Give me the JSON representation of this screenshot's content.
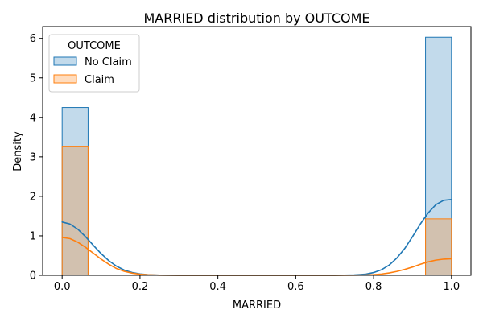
{
  "chart_data": {
    "type": "histogram",
    "title": "MARRIED distribution by OUTCOME",
    "xlabel": "MARRIED",
    "ylabel": "Density",
    "xlim": [
      -0.05,
      1.05
    ],
    "ylim": [
      0,
      6.3
    ],
    "xticks": [
      0.0,
      0.2,
      0.4,
      0.6,
      0.8,
      1.0
    ],
    "xtick_labels": [
      "0.0",
      "0.2",
      "0.4",
      "0.6",
      "0.8",
      "1.0"
    ],
    "yticks": [
      0,
      1,
      2,
      3,
      4,
      5,
      6
    ],
    "ytick_labels": [
      "0",
      "1",
      "2",
      "3",
      "4",
      "5",
      "6"
    ],
    "grid": false,
    "legend": {
      "title": "OUTCOME",
      "placement": "top-left",
      "entries": [
        "No Claim",
        "Claim"
      ]
    },
    "series": [
      {
        "name": "No Claim",
        "color": "#1f77b4",
        "bins": [
          {
            "x0": 0.0,
            "x1": 0.0667,
            "value": 4.25
          },
          {
            "x0": 0.9333,
            "x1": 1.0,
            "value": 6.03
          }
        ],
        "kde": {
          "x": [
            0.0,
            0.02,
            0.04,
            0.06,
            0.08,
            0.1,
            0.12,
            0.14,
            0.16,
            0.18,
            0.2,
            0.22,
            0.25,
            0.3,
            0.4,
            0.5,
            0.6,
            0.7,
            0.75,
            0.78,
            0.8,
            0.82,
            0.84,
            0.86,
            0.88,
            0.9,
            0.92,
            0.94,
            0.96,
            0.98,
            1.0
          ],
          "y": [
            1.35,
            1.3,
            1.17,
            0.98,
            0.76,
            0.55,
            0.37,
            0.23,
            0.13,
            0.07,
            0.035,
            0.017,
            0.005,
            0.0,
            0.0,
            0.0,
            0.0,
            0.0,
            0.01,
            0.03,
            0.07,
            0.14,
            0.26,
            0.44,
            0.68,
            0.98,
            1.3,
            1.58,
            1.79,
            1.9,
            1.92
          ]
        }
      },
      {
        "name": "Claim",
        "color": "#ff7f0e",
        "bins": [
          {
            "x0": 0.0,
            "x1": 0.0667,
            "value": 3.27
          },
          {
            "x0": 0.9333,
            "x1": 1.0,
            "value": 1.43
          }
        ],
        "kde": {
          "x": [
            0.0,
            0.02,
            0.04,
            0.06,
            0.08,
            0.1,
            0.12,
            0.14,
            0.16,
            0.18,
            0.2,
            0.22,
            0.25,
            0.3,
            0.4,
            0.5,
            0.6,
            0.7,
            0.75,
            0.78,
            0.8,
            0.82,
            0.84,
            0.86,
            0.88,
            0.9,
            0.92,
            0.94,
            0.96,
            0.98,
            1.0
          ],
          "y": [
            0.96,
            0.93,
            0.84,
            0.71,
            0.56,
            0.41,
            0.28,
            0.17,
            0.1,
            0.055,
            0.028,
            0.013,
            0.004,
            0.0,
            0.0,
            0.0,
            0.0,
            0.0,
            0.003,
            0.008,
            0.017,
            0.033,
            0.06,
            0.1,
            0.15,
            0.21,
            0.28,
            0.34,
            0.385,
            0.41,
            0.42
          ]
        }
      }
    ]
  }
}
